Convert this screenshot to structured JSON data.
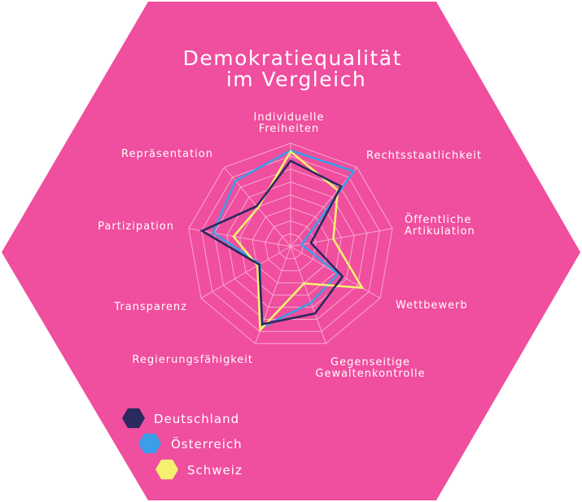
{
  "colors": {
    "background": "#f04e9e",
    "grid": "#f8a9cf"
  },
  "chart_data": {
    "type": "radar",
    "title": [
      "Demokratiequalität",
      "im Vergleich"
    ],
    "axes": [
      [
        "Individuelle",
        "Freiheiten"
      ],
      [
        "Rechtsstaatlichkeit"
      ],
      [
        "Öffentliche",
        "Artikulation"
      ],
      [
        "Wettbewerb"
      ],
      [
        "Gegenseitige",
        "Gewaltenkontrolle"
      ],
      [
        "Regierungsfähigkeit"
      ],
      [
        "Transparenz"
      ],
      [
        "Partizipation"
      ],
      [
        "Repräsentation"
      ]
    ],
    "rlim": [
      0,
      10
    ],
    "rings": 8,
    "series": [
      {
        "name": "Deutschland",
        "color": "#2a2a5e",
        "values": [
          8.3,
          7.6,
          2.0,
          5.8,
          6.9,
          8.0,
          3.5,
          8.7,
          5.1
        ]
      },
      {
        "name": "Österreich",
        "color": "#3a9ee8",
        "values": [
          9.3,
          9.5,
          1.1,
          5.3,
          5.8,
          8.4,
          3.4,
          7.6,
          8.3
        ]
      },
      {
        "name": "Schweiz",
        "color": "#f5f070",
        "values": [
          9.2,
          7.1,
          4.2,
          8.0,
          3.8,
          8.6,
          3.7,
          5.6,
          4.9
        ]
      }
    ],
    "legend_position": "bottom-left"
  }
}
